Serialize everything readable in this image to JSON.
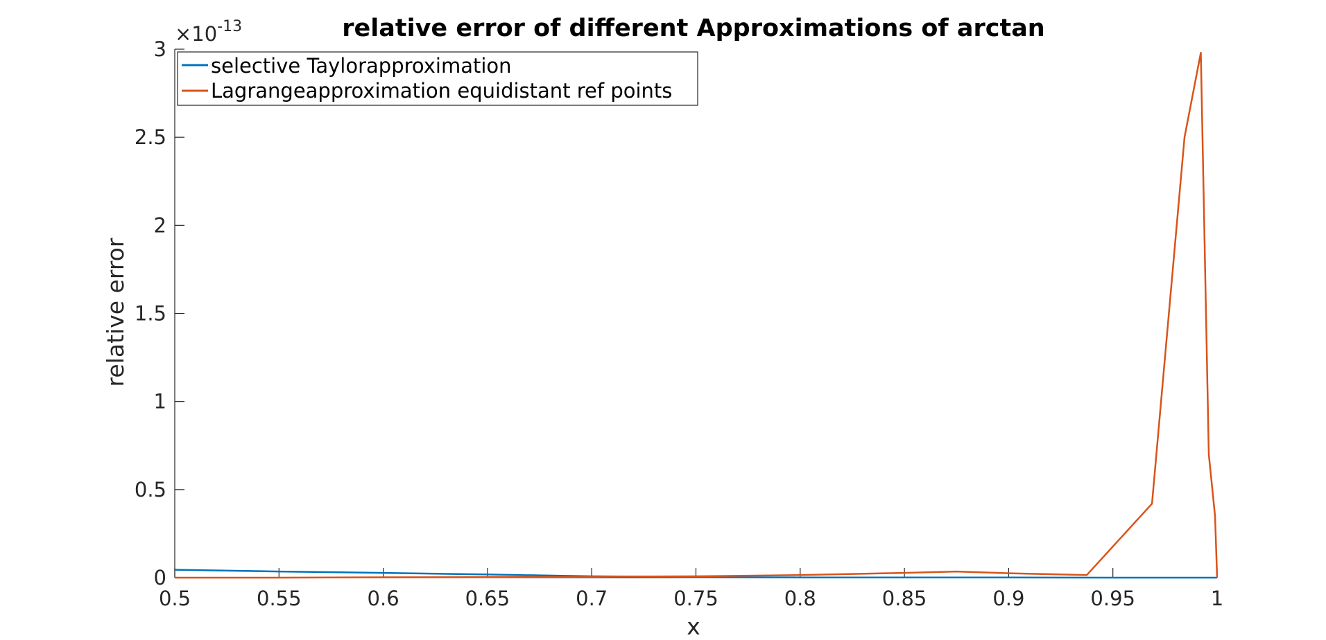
{
  "chart_data": {
    "type": "line",
    "title": "relative error of different Approximations of arctan",
    "xlabel": "x",
    "ylabel": "relative error",
    "y_exponent_label": "×10",
    "y_exponent_power": "-13",
    "xlim": [
      0.5,
      1.0
    ],
    "ylim": [
      0,
      3
    ],
    "x_ticks": [
      0.5,
      0.55,
      0.6,
      0.65,
      0.7,
      0.75,
      0.8,
      0.85,
      0.9,
      0.95,
      1.0
    ],
    "x_tick_labels": [
      "0.5",
      "0.55",
      "0.6",
      "0.65",
      "0.7",
      "0.75",
      "0.8",
      "0.85",
      "0.9",
      "0.95",
      "1"
    ],
    "y_ticks": [
      0,
      0.5,
      1,
      1.5,
      2,
      2.5,
      3
    ],
    "y_tick_labels": [
      "0",
      "0.5",
      "1",
      "1.5",
      "2",
      "2.5",
      "3"
    ],
    "grid": false,
    "legend_position": "top-left",
    "series": [
      {
        "name": "selective Taylorapproximation",
        "color": "#0072BD",
        "x": [
          0.5,
          0.55,
          0.6,
          0.65,
          0.7,
          0.75,
          0.8,
          0.85,
          0.9,
          0.95,
          1.0
        ],
        "y": [
          0.045,
          0.035,
          0.027,
          0.018,
          0.008,
          0.003,
          0.001,
          0.001,
          0.001,
          0.0,
          0.0
        ]
      },
      {
        "name": "Lagrangeapproximation equidistant ref points",
        "color": "#D95319",
        "x": [
          0.5,
          0.55,
          0.6,
          0.65,
          0.7,
          0.75,
          0.8,
          0.85,
          0.875,
          0.9,
          0.9375,
          0.96875,
          0.984375,
          0.9921875,
          0.996,
          0.999,
          1.0
        ],
        "y": [
          0.0,
          0.0,
          0.002,
          0.003,
          0.005,
          0.008,
          0.015,
          0.027,
          0.035,
          0.025,
          0.015,
          0.42,
          2.5,
          2.98,
          0.7,
          0.35,
          0.0
        ]
      }
    ]
  }
}
